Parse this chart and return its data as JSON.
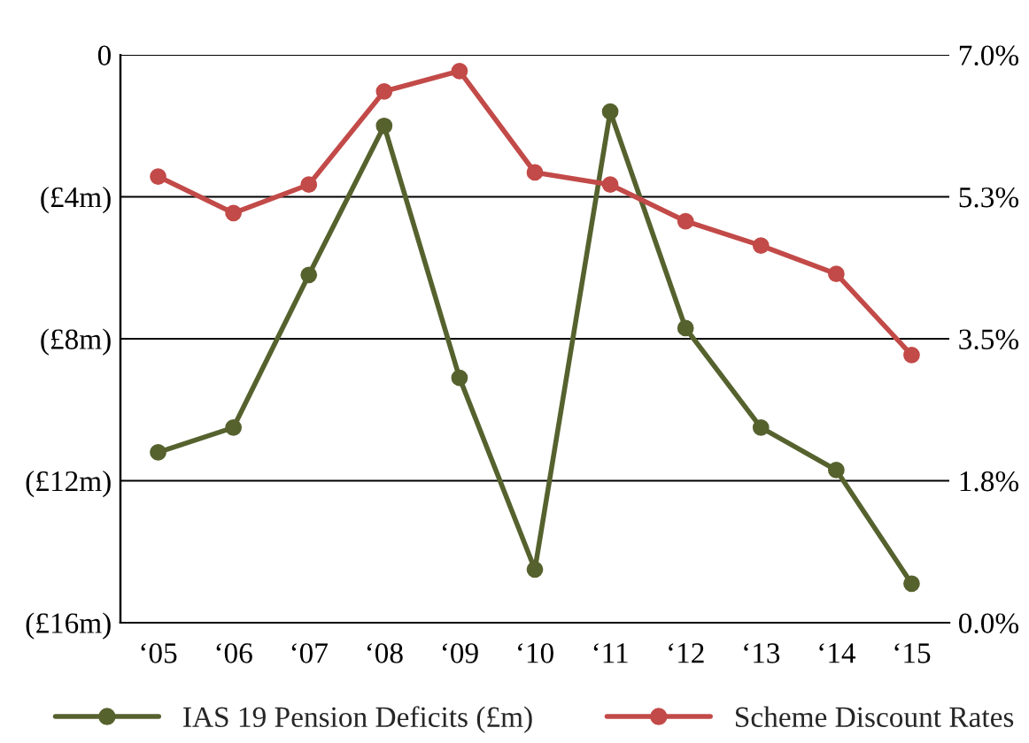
{
  "chart_data": {
    "type": "line",
    "categories": [
      "‘05",
      "‘06",
      "‘07",
      "‘08",
      "‘09",
      "‘10",
      "‘11",
      "‘12",
      "‘13",
      "‘14",
      "‘15"
    ],
    "series": [
      {
        "name": "IAS 19 Pension Deficits (£m)",
        "color": "#56622e",
        "values": [
          -11.2,
          -10.5,
          -6.2,
          -2.0,
          -9.1,
          -14.5,
          -1.6,
          -7.7,
          -10.5,
          -11.7,
          -14.9
        ]
      },
      {
        "name": "Scheme Discount Rates",
        "color": "#c24a48",
        "axis": "y2",
        "values": [
          5.5,
          5.05,
          5.4,
          6.55,
          6.8,
          5.55,
          5.4,
          4.95,
          4.65,
          4.3,
          3.3
        ]
      }
    ],
    "ylim": [
      -16,
      0
    ],
    "yticks": [
      {
        "value": -16,
        "label": "(£16m)"
      },
      {
        "value": -12,
        "label": "(£12m)"
      },
      {
        "value": -8,
        "label": "(£8m)"
      },
      {
        "value": -4,
        "label": "(£4m)"
      },
      0
    ],
    "y2lim": [
      0,
      7
    ],
    "y2ticks": [
      {
        "value": 0,
        "label": "0.0%"
      },
      {
        "value": 1.75,
        "label": "1.8%"
      },
      {
        "value": 3.5,
        "label": "3.5%"
      },
      {
        "value": 5.25,
        "label": "5.3%"
      },
      {
        "value": 7,
        "label": "7.0%"
      }
    ],
    "grid": "y",
    "legend": "bottom",
    "marker": "circle",
    "line_style": "solid"
  }
}
